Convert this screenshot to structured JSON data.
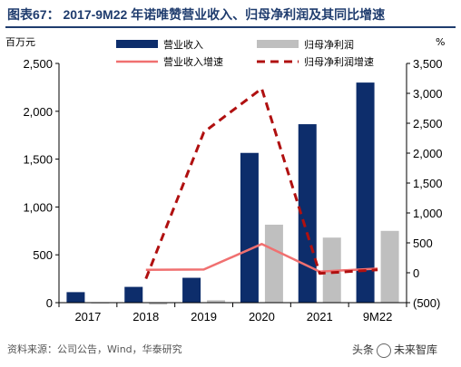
{
  "title": "图表67：  2017-9M22 年诺唯赞营业收入、归母净利润及其同比增速",
  "source": "资料来源：公司公告，Wind，华泰研究",
  "watermark": {
    "prefix": "头条",
    "name": "未来智库"
  },
  "colors": {
    "revenue": "#0d2d6b",
    "net_profit": "#bfbfbf",
    "revenue_growth": "#f07070",
    "net_profit_growth": "#b01010",
    "title": "#1f3c6e"
  },
  "chart_data": {
    "type": "bar",
    "categories": [
      "2017",
      "2018",
      "2019",
      "2020",
      "2021",
      "9M22"
    ],
    "left_axis": {
      "label": "百万元",
      "min": 0,
      "max": 2500,
      "ticks": [
        0,
        500,
        1000,
        1500,
        2000,
        2500
      ],
      "tick_labels": [
        "0",
        "500",
        "1,000",
        "1,500",
        "2,000",
        "2,500"
      ]
    },
    "right_axis": {
      "label": "%",
      "min": -500,
      "max": 3500,
      "ticks": [
        -500,
        0,
        500,
        1000,
        1500,
        2000,
        2500,
        3000,
        3500
      ],
      "tick_labels": [
        "(500)",
        "0",
        "500",
        "1,000",
        "1,500",
        "2,000",
        "2,500",
        "3,000",
        "3,500"
      ]
    },
    "series": [
      {
        "name": "营业收入",
        "kind": "bar",
        "axis": "left",
        "values": [
          110,
          165,
          260,
          1565,
          1865,
          2300
        ]
      },
      {
        "name": "归母净利润",
        "kind": "bar",
        "axis": "left",
        "values": [
          -8,
          -20,
          25,
          815,
          680,
          750
        ]
      },
      {
        "name": "营业收入增速",
        "kind": "line",
        "style": "solid",
        "axis": "right",
        "values": [
          null,
          50,
          55,
          480,
          20,
          70
        ]
      },
      {
        "name": "归母净利润增速",
        "kind": "line",
        "style": "dashed",
        "axis": "right",
        "values": [
          null,
          -100,
          2350,
          3080,
          -10,
          50
        ]
      }
    ],
    "legend_placement": "top",
    "grid": false
  }
}
